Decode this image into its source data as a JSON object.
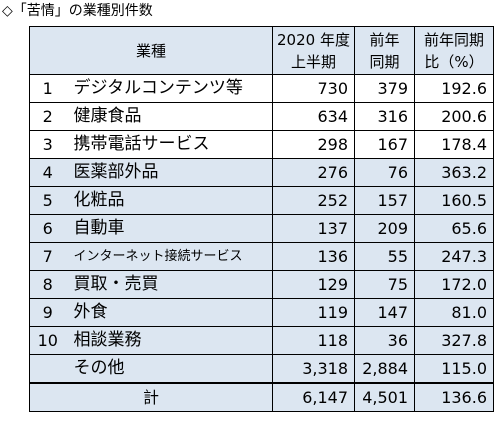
{
  "title": "◇「苦情」の業種別件数",
  "header": {
    "industry": "業種",
    "col1": [
      "2020 年度",
      "上半期"
    ],
    "col2": [
      "前年",
      "同期"
    ],
    "col3": [
      "前年同期",
      "比（%）"
    ]
  },
  "rows": [
    {
      "rank": "1",
      "name": "デジタルコンテンツ等",
      "h1": "730",
      "prev": "379",
      "ratio": "192.6"
    },
    {
      "rank": "2",
      "name": "健康食品",
      "h1": "634",
      "prev": "316",
      "ratio": "200.6"
    },
    {
      "rank": "3",
      "name": "携帯電話サービス",
      "h1": "298",
      "prev": "167",
      "ratio": "178.4"
    },
    {
      "rank": "4",
      "name": "医薬部外品",
      "h1": "276",
      "prev": "76",
      "ratio": "363.2"
    },
    {
      "rank": "5",
      "name": "化粧品",
      "h1": "252",
      "prev": "157",
      "ratio": "160.5"
    },
    {
      "rank": "6",
      "name": "自動車",
      "h1": "137",
      "prev": "209",
      "ratio": "65.6"
    },
    {
      "rank": "7",
      "name": "インターネット接続サービス",
      "h1": "136",
      "prev": "55",
      "ratio": "247.3"
    },
    {
      "rank": "8",
      "name": "買取・売買",
      "h1": "129",
      "prev": "75",
      "ratio": "172.0"
    },
    {
      "rank": "9",
      "name": "外食",
      "h1": "119",
      "prev": "147",
      "ratio": "81.0"
    },
    {
      "rank": "10",
      "name": "相談業務",
      "h1": "118",
      "prev": "36",
      "ratio": "327.8"
    },
    {
      "rank": "",
      "name": "その他",
      "h1": "3,318",
      "prev": "2,884",
      "ratio": "115.0"
    }
  ],
  "total": {
    "label": "計",
    "h1": "6,147",
    "prev": "4,501",
    "ratio": "136.6"
  }
}
